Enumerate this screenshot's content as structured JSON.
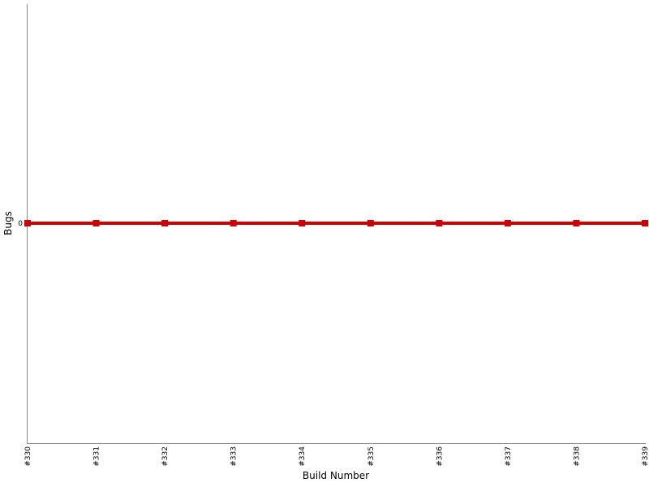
{
  "chart_data": {
    "type": "line",
    "title": "",
    "xlabel": "Build Number",
    "ylabel": "Bugs",
    "categories": [
      "#330",
      "#331",
      "#332",
      "#333",
      "#334",
      "#335",
      "#336",
      "#337",
      "#338",
      "#339"
    ],
    "y_ticks": [
      "0"
    ],
    "series": [
      {
        "values": [
          0,
          0,
          0,
          0,
          0,
          0,
          0,
          0,
          0,
          0
        ],
        "color": "#cc0000",
        "marker": "square"
      }
    ],
    "grid": false,
    "legend": "none"
  }
}
